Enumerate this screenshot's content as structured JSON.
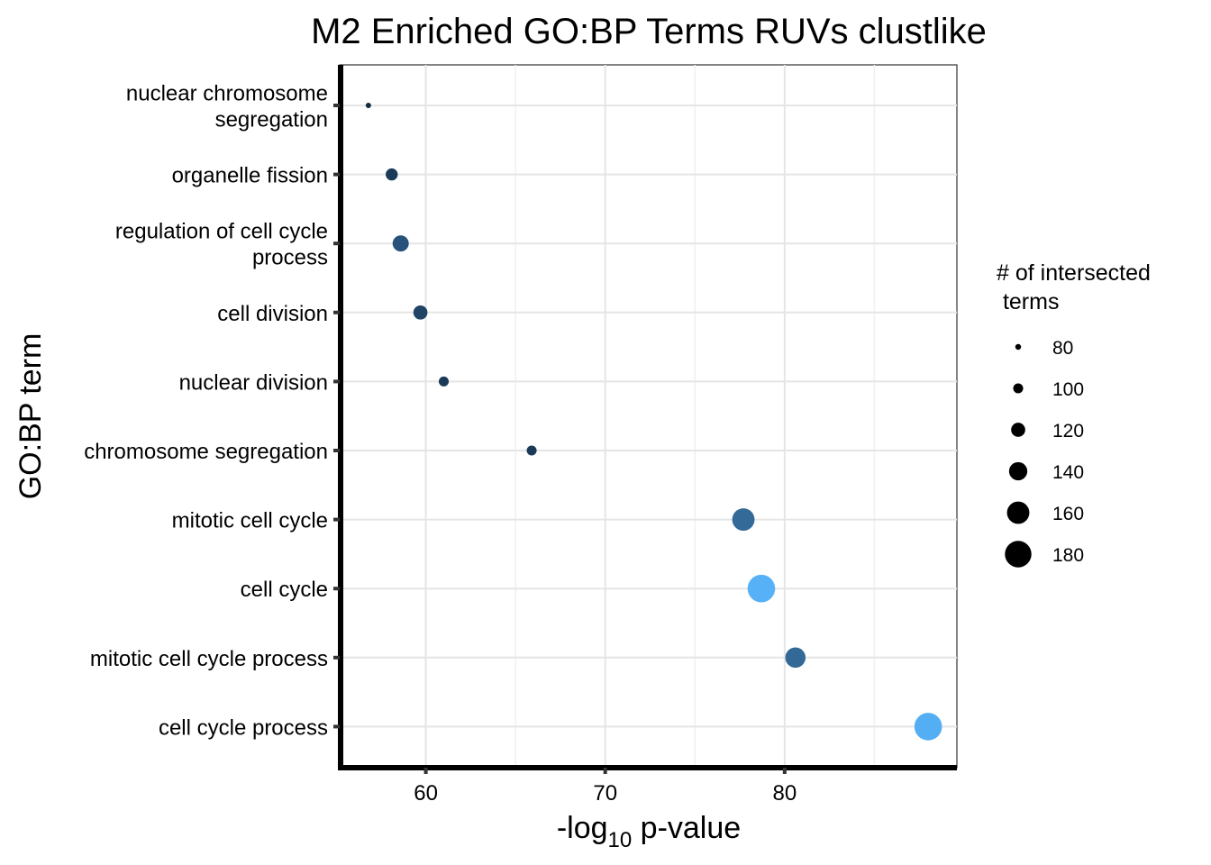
{
  "chart_data": {
    "type": "scatter",
    "title": "M2 Enriched GO:BP Terms RUVs clustlike",
    "xlabel_prefix": "-log",
    "xlabel_sub": "10",
    "xlabel_suffix": " p-value",
    "ylabel": "GO:BP term",
    "xlim": [
      55.2,
      89.6
    ],
    "xticks": [
      60,
      70,
      80
    ],
    "grid": true,
    "categories": [
      [
        "nuclear chromosome",
        "segregation"
      ],
      [
        "organelle fission"
      ],
      [
        "regulation of cell cycle",
        "process"
      ],
      [
        "cell division"
      ],
      [
        "nuclear division"
      ],
      [
        "chromosome segregation"
      ],
      [
        "mitotic cell cycle"
      ],
      [
        "cell cycle"
      ],
      [
        "mitotic cell cycle process"
      ],
      [
        "cell cycle process"
      ]
    ],
    "points": [
      {
        "term": "nuclear chromosome segregation",
        "x": 56.8,
        "size": 78,
        "color": "#132b43"
      },
      {
        "term": "organelle fission",
        "x": 58.1,
        "size": 110,
        "color": "#1a3a58"
      },
      {
        "term": "regulation of cell cycle process",
        "x": 58.6,
        "size": 130,
        "color": "#26527b"
      },
      {
        "term": "cell division",
        "x": 59.7,
        "size": 120,
        "color": "#1f4466"
      },
      {
        "term": "nuclear division",
        "x": 61.0,
        "size": 100,
        "color": "#1a3a58"
      },
      {
        "term": "chromosome segregation",
        "x": 65.9,
        "size": 100,
        "color": "#1a3a58"
      },
      {
        "term": "mitotic cell cycle",
        "x": 77.7,
        "size": 160,
        "color": "#336a98"
      },
      {
        "term": "cell cycle",
        "x": 78.7,
        "size": 185,
        "color": "#56b1f7"
      },
      {
        "term": "mitotic cell cycle process",
        "x": 80.6,
        "size": 150,
        "color": "#326996"
      },
      {
        "term": "cell cycle process",
        "x": 88.0,
        "size": 185,
        "color": "#54aef3"
      }
    ],
    "legend": {
      "title_lines": [
        "# of intersected",
        " terms"
      ],
      "position": "right",
      "entries": [
        {
          "label": "80",
          "size": 80
        },
        {
          "label": "100",
          "size": 100
        },
        {
          "label": "120",
          "size": 120
        },
        {
          "label": "140",
          "size": 140
        },
        {
          "label": "160",
          "size": 160
        },
        {
          "label": "180",
          "size": 180
        }
      ]
    }
  }
}
